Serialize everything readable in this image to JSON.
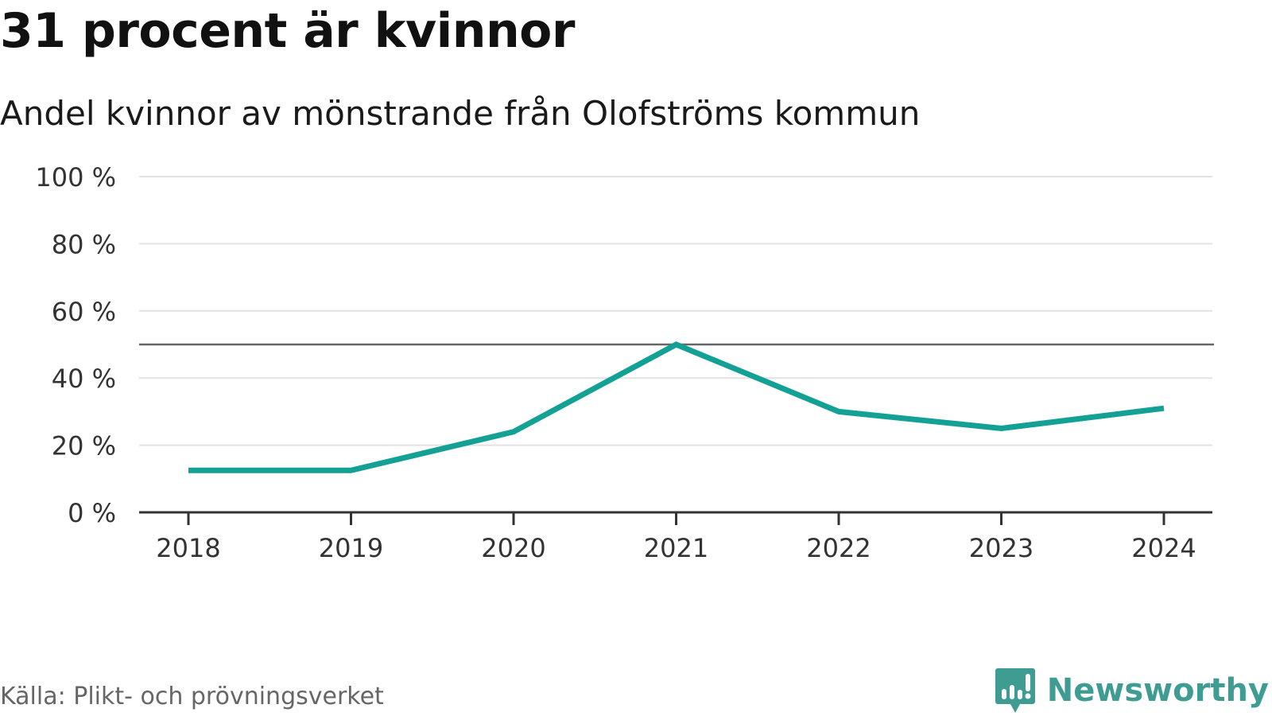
{
  "header": {
    "title": "31 procent är kvinnor",
    "subtitle": "Andel kvinnor av mönstrande från Olofströms kommun"
  },
  "footer": {
    "source": "Källa: Plikt- och prövningsverket",
    "brand": "Newsworthy"
  },
  "colors": {
    "line": "#14a195",
    "grid": "#e2e2e2",
    "reference": "#666666",
    "axis": "#333333",
    "brand": "#3f9c93"
  },
  "chart_data": {
    "type": "line",
    "title": "31 procent är kvinnor",
    "subtitle": "Andel kvinnor av mönstrande från Olofströms kommun",
    "xlabel": "",
    "ylabel": "",
    "categories": [
      "2018",
      "2019",
      "2020",
      "2021",
      "2022",
      "2023",
      "2024"
    ],
    "series": [
      {
        "name": "Andel kvinnor",
        "values": [
          12.5,
          12.5,
          24,
          50,
          30,
          25,
          31
        ]
      }
    ],
    "ylim": [
      0,
      100
    ],
    "yticks": [
      0,
      20,
      40,
      60,
      80,
      100
    ],
    "ytick_labels": [
      "0 %",
      "20 %",
      "40 %",
      "60 %",
      "80 %",
      "100 %"
    ],
    "reference_line": 50,
    "grid": true,
    "legend": "none"
  }
}
